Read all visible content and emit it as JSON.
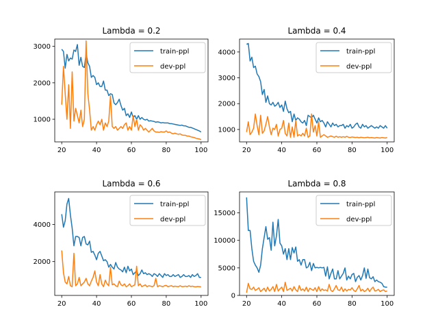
{
  "figure": {
    "background": "#ffffff"
  },
  "colors": {
    "train": "#1f77b4",
    "dev": "#ff7f0e",
    "axis": "#000000",
    "legend_border": "#cccccc"
  },
  "chart_data": [
    {
      "type": "line",
      "title": "Lambda = 0.2",
      "xlabel": "",
      "ylabel": "",
      "xlim": [
        16,
        104
      ],
      "ylim": [
        380,
        3200
      ],
      "xticks": [
        20,
        40,
        60,
        80,
        100
      ],
      "yticks": [
        1000,
        2000,
        3000
      ],
      "legend": "top-right",
      "grid": false,
      "x": [
        20,
        21,
        22,
        23,
        24,
        25,
        26,
        27,
        28,
        29,
        30,
        31,
        32,
        33,
        34,
        35,
        36,
        37,
        38,
        39,
        40,
        41,
        42,
        43,
        44,
        45,
        46,
        47,
        48,
        49,
        50,
        51,
        52,
        53,
        54,
        55,
        56,
        57,
        58,
        59,
        60,
        61,
        62,
        63,
        64,
        65,
        66,
        67,
        68,
        69,
        70,
        71,
        72,
        73,
        74,
        75,
        76,
        77,
        78,
        79,
        80,
        81,
        82,
        83,
        84,
        85,
        86,
        87,
        88,
        89,
        90,
        91,
        92,
        93,
        94,
        95,
        96,
        97,
        98,
        99,
        100
      ],
      "series": [
        {
          "name": "train-ppl",
          "color": "#1f77b4",
          "values": [
            2920,
            2860,
            2400,
            2780,
            2600,
            2680,
            2650,
            2900,
            2860,
            3050,
            2480,
            2700,
            2450,
            2420,
            2800,
            2550,
            2450,
            2150,
            2200,
            2150,
            1950,
            2000,
            1900,
            1900,
            2050,
            1800,
            1800,
            1650,
            1700,
            1680,
            1450,
            1400,
            1460,
            1550,
            1380,
            1250,
            1300,
            1100,
            1150,
            1050,
            1200,
            1050,
            1100,
            1000,
            1100,
            1000,
            1050,
            1000,
            980,
            1000,
            950,
            960,
            950,
            940,
            920,
            930,
            920,
            900,
            910,
            900,
            900,
            900,
            880,
            880,
            870,
            860,
            850,
            840,
            830,
            840,
            820,
            820,
            800,
            780,
            780,
            760,
            740,
            720,
            700,
            680,
            650
          ]
        },
        {
          "name": "dev-ppl",
          "color": "#ff7f0e",
          "values": [
            1400,
            2450,
            1700,
            1000,
            1950,
            750,
            2300,
            950,
            1300,
            1100,
            900,
            1250,
            800,
            1000,
            3150,
            1700,
            1250,
            700,
            800,
            700,
            850,
            950,
            850,
            1000,
            700,
            900,
            800,
            950,
            1650,
            800,
            750,
            800,
            700,
            750,
            800,
            750,
            850,
            900,
            700,
            800,
            700,
            1100,
            800,
            1000,
            700,
            850,
            800,
            700,
            750,
            700,
            650,
            700,
            750,
            680,
            650,
            650,
            640,
            660,
            650,
            650,
            680,
            640,
            650,
            620,
            600,
            620,
            600,
            590,
            600,
            570,
            560,
            560,
            540,
            540,
            520,
            510,
            500,
            480,
            470,
            460,
            440
          ]
        }
      ]
    },
    {
      "type": "line",
      "title": "Lambda = 0.4",
      "xlabel": "",
      "ylabel": "",
      "xlim": [
        16,
        104
      ],
      "ylim": [
        520,
        4500
      ],
      "xticks": [
        20,
        40,
        60,
        80,
        100
      ],
      "yticks": [
        1000,
        2000,
        3000,
        4000
      ],
      "legend": "top-right",
      "grid": false,
      "x": [
        20,
        21,
        22,
        23,
        24,
        25,
        26,
        27,
        28,
        29,
        30,
        31,
        32,
        33,
        34,
        35,
        36,
        37,
        38,
        39,
        40,
        41,
        42,
        43,
        44,
        45,
        46,
        47,
        48,
        49,
        50,
        51,
        52,
        53,
        54,
        55,
        56,
        57,
        58,
        59,
        60,
        61,
        62,
        63,
        64,
        65,
        66,
        67,
        68,
        69,
        70,
        71,
        72,
        73,
        74,
        75,
        76,
        77,
        78,
        79,
        80,
        81,
        82,
        83,
        84,
        85,
        86,
        87,
        88,
        89,
        90,
        91,
        92,
        93,
        94,
        95,
        96,
        97,
        98,
        99,
        100
      ],
      "series": [
        {
          "name": "train-ppl",
          "color": "#1f77b4",
          "values": [
            4300,
            4330,
            3650,
            3800,
            3400,
            3450,
            3150,
            3050,
            2850,
            2350,
            2550,
            2050,
            2300,
            2000,
            1950,
            2050,
            1900,
            1950,
            2050,
            1850,
            1950,
            1700,
            2100,
            1800,
            1650,
            1700,
            1300,
            1600,
            1350,
            1450,
            1400,
            1300,
            1250,
            1350,
            1150,
            1550,
            1500,
            1450,
            1550,
            1400,
            1250,
            1450,
            1300,
            1350,
            1250,
            1100,
            1300,
            1200,
            1100,
            1250,
            1150,
            1200,
            1100,
            1150,
            1150,
            1200,
            1050,
            1150,
            1100,
            1200,
            1050,
            1100,
            1200,
            1250,
            1100,
            1050,
            1200,
            1100,
            1150,
            1050,
            1100,
            1150,
            1100,
            1050,
            1100,
            1050,
            1150,
            1100,
            1050,
            1150,
            1050
          ]
        },
        {
          "name": "dev-ppl",
          "color": "#ff7f0e",
          "values": [
            900,
            1300,
            800,
            900,
            1050,
            1600,
            1150,
            800,
            1550,
            850,
            950,
            1200,
            1500,
            1100,
            800,
            1050,
            1000,
            1200,
            750,
            1000,
            1050,
            1350,
            850,
            750,
            1250,
            700,
            1100,
            700,
            1350,
            750,
            800,
            750,
            850,
            750,
            1050,
            700,
            750,
            1600,
            900,
            1150,
            750,
            1300,
            700,
            750,
            800,
            750,
            700,
            720,
            750,
            720,
            700,
            740,
            700,
            720,
            700,
            720,
            700,
            730,
            700,
            690,
            710,
            700,
            690,
            700,
            680,
            700,
            690,
            680,
            690,
            700,
            680,
            690,
            680,
            670,
            690,
            680,
            670,
            690,
            680,
            670,
            690
          ]
        }
      ]
    },
    {
      "type": "line",
      "title": "Lambda = 0.6",
      "xlabel": "",
      "ylabel": "",
      "xlim": [
        16,
        104
      ],
      "ylim": [
        180,
        5750
      ],
      "xticks": [
        20,
        40,
        60,
        80,
        100
      ],
      "yticks": [
        2000,
        4000
      ],
      "legend": "top-right",
      "grid": false,
      "x": [
        20,
        21,
        22,
        23,
        24,
        25,
        26,
        27,
        28,
        29,
        30,
        31,
        32,
        33,
        34,
        35,
        36,
        37,
        38,
        39,
        40,
        41,
        42,
        43,
        44,
        45,
        46,
        47,
        48,
        49,
        50,
        51,
        52,
        53,
        54,
        55,
        56,
        57,
        58,
        59,
        60,
        61,
        62,
        63,
        64,
        65,
        66,
        67,
        68,
        69,
        70,
        71,
        72,
        73,
        74,
        75,
        76,
        77,
        78,
        79,
        80,
        81,
        82,
        83,
        84,
        85,
        86,
        87,
        88,
        89,
        90,
        91,
        92,
        93,
        94,
        95,
        96,
        97,
        98,
        99,
        100
      ],
      "series": [
        {
          "name": "train-ppl",
          "color": "#1f77b4",
          "values": [
            4550,
            3850,
            4200,
            5100,
            5400,
            4500,
            3800,
            2850,
            3350,
            3350,
            3300,
            2850,
            3300,
            3350,
            2950,
            2900,
            3100,
            2500,
            2550,
            2350,
            2100,
            2450,
            2550,
            2300,
            2050,
            2100,
            2000,
            1700,
            1850,
            1700,
            1600,
            1950,
            1700,
            1600,
            1550,
            1450,
            1700,
            1400,
            1750,
            1500,
            1600,
            1300,
            1400,
            1500,
            1250,
            1350,
            1550,
            1350,
            1400,
            1300,
            1350,
            1300,
            1200,
            1350,
            1300,
            1200,
            1350,
            1250,
            1150,
            1350,
            1250,
            1300,
            1200,
            1200,
            1300,
            1200,
            1250,
            1300,
            1150,
            1200,
            1300,
            1200,
            1200,
            1250,
            1150,
            1300,
            1200,
            1250,
            1350,
            1150,
            1150
          ]
        },
        {
          "name": "dev-ppl",
          "color": "#ff7f0e",
          "values": [
            2600,
            1400,
            900,
            800,
            1200,
            700,
            650,
            2450,
            700,
            800,
            1150,
            700,
            800,
            900,
            1100,
            800,
            700,
            950,
            1150,
            1500,
            900,
            700,
            1300,
            800,
            650,
            1000,
            800,
            700,
            1700,
            750,
            800,
            700,
            650,
            950,
            750,
            700,
            800,
            650,
            700,
            800,
            650,
            700,
            750,
            1750,
            700,
            800,
            650,
            700,
            750,
            650,
            700,
            680,
            650,
            700,
            1100,
            650,
            700,
            680,
            650,
            700,
            720,
            650,
            680,
            700,
            650,
            680,
            660,
            650,
            700,
            650,
            660,
            680,
            650,
            700,
            660,
            680,
            650,
            640,
            660,
            650,
            640
          ]
        }
      ]
    },
    {
      "type": "line",
      "title": "Lambda = 0.8",
      "xlabel": "",
      "ylabel": "",
      "xlim": [
        16,
        104
      ],
      "ylim": [
        0,
        18800
      ],
      "xticks": [
        20,
        40,
        60,
        80,
        100
      ],
      "yticks": [
        0,
        5000,
        10000,
        15000
      ],
      "legend": "top-right",
      "grid": false,
      "x": [
        20,
        21,
        22,
        23,
        24,
        25,
        26,
        27,
        28,
        29,
        30,
        31,
        32,
        33,
        34,
        35,
        36,
        37,
        38,
        39,
        40,
        41,
        42,
        43,
        44,
        45,
        46,
        47,
        48,
        49,
        50,
        51,
        52,
        53,
        54,
        55,
        56,
        57,
        58,
        59,
        60,
        61,
        62,
        63,
        64,
        65,
        66,
        67,
        68,
        69,
        70,
        71,
        72,
        73,
        74,
        75,
        76,
        77,
        78,
        79,
        80,
        81,
        82,
        83,
        84,
        85,
        86,
        87,
        88,
        89,
        90,
        91,
        92,
        93,
        94,
        95,
        96,
        97,
        98,
        99,
        100
      ],
      "series": [
        {
          "name": "train-ppl",
          "color": "#1f77b4",
          "values": [
            17800,
            11800,
            11800,
            8500,
            6200,
            5500,
            5000,
            4200,
            5500,
            8500,
            10500,
            12500,
            10200,
            10500,
            8200,
            13300,
            9000,
            10800,
            13800,
            9500,
            9000,
            7500,
            8500,
            6500,
            8500,
            6500,
            8700,
            7700,
            8800,
            6200,
            6500,
            5500,
            6500,
            6500,
            5000,
            5200,
            6000,
            4500,
            5800,
            5000,
            5100,
            5000,
            5100,
            5000,
            5100,
            3500,
            5200,
            3000,
            4000,
            4800,
            3000,
            3000,
            4500,
            3000,
            3500,
            4000,
            5000,
            2800,
            3500,
            3000,
            3800,
            4000,
            2500,
            3300,
            3600,
            2800,
            3600,
            5000,
            3100,
            4800,
            3200,
            3000,
            3400,
            2500,
            2800,
            2500,
            2400,
            2200,
            1600,
            1500,
            1500
          ]
        },
        {
          "name": "dev-ppl",
          "color": "#ff7f0e",
          "values": [
            500,
            2200,
            1200,
            1100,
            1500,
            900,
            1100,
            1400,
            700,
            1000,
            1300,
            700,
            1500,
            800,
            1100,
            1600,
            700,
            2000,
            800,
            1200,
            1500,
            700,
            2400,
            900,
            1100,
            1300,
            800,
            1600,
            1000,
            700,
            1800,
            900,
            1200,
            800,
            1500,
            700,
            1300,
            1100,
            900,
            1400,
            700,
            1600,
            800,
            1200,
            900,
            1000,
            800,
            2000,
            900,
            700,
            1200,
            1800,
            1000,
            900,
            1500,
            700,
            1200,
            800,
            1100,
            1000,
            1400,
            900,
            700,
            1200,
            1800,
            800,
            1100,
            700,
            900,
            1300,
            700,
            1200,
            1500,
            800,
            900,
            1100,
            700,
            900,
            1000,
            700,
            800
          ]
        }
      ]
    }
  ]
}
